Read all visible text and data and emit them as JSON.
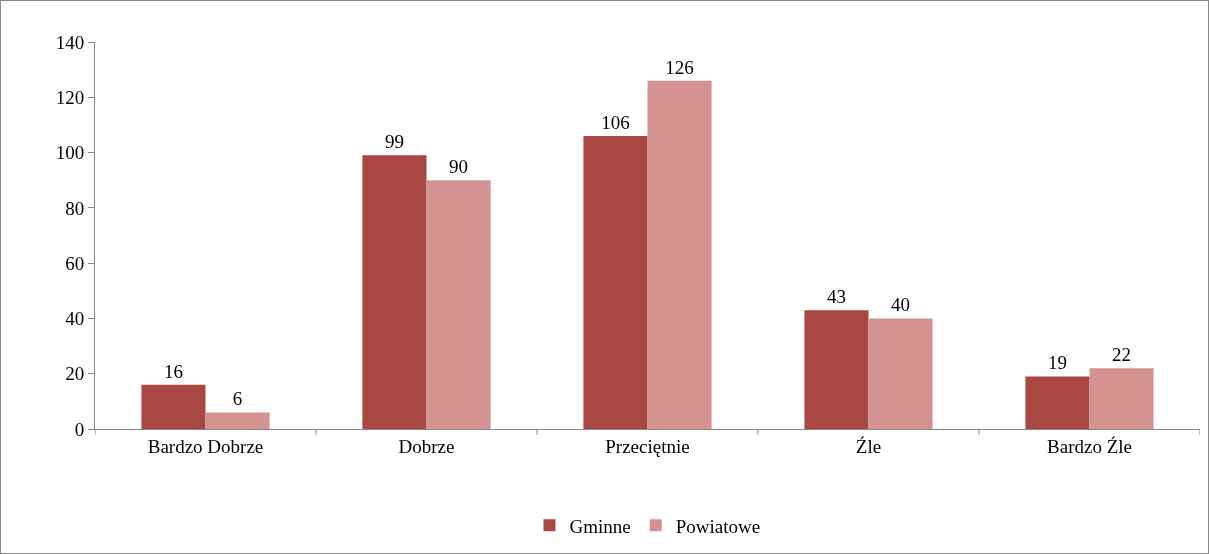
{
  "chart_data": {
    "type": "bar",
    "categories": [
      "Bardzo Dobrze",
      "Dobrze",
      "Przeciętnie",
      "Źle",
      "Bardzo Źle"
    ],
    "series": [
      {
        "name": "Gminne",
        "color": "#a94743",
        "values": [
          16,
          99,
          106,
          43,
          19
        ]
      },
      {
        "name": "Powiatowe",
        "color": "#d49391",
        "values": [
          6,
          90,
          126,
          40,
          22
        ]
      }
    ],
    "ylim": [
      0,
      140
    ],
    "yticks": [
      0,
      20,
      40,
      60,
      80,
      100,
      120,
      140
    ],
    "grid": false,
    "legend": "bottom",
    "data_labels": true
  }
}
